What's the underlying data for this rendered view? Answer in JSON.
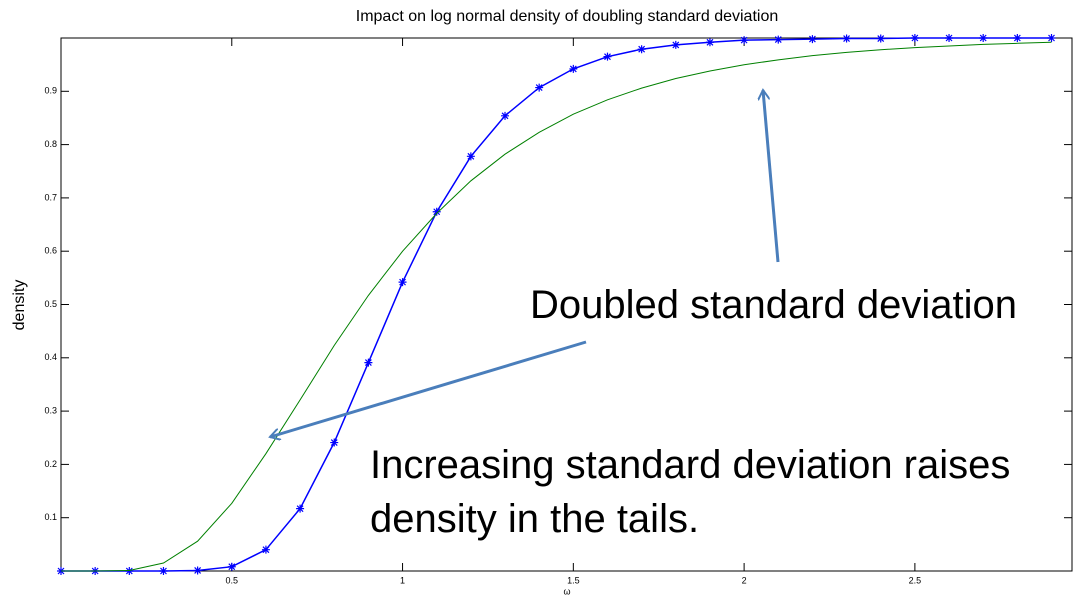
{
  "chart_data": {
    "type": "line",
    "title": "Impact on log normal density of doubling standard deviation",
    "xlabel": "ω",
    "ylabel": "density",
    "x": [
      0,
      0.1,
      0.2,
      0.3,
      0.4,
      0.5,
      0.6,
      0.7,
      0.8,
      0.9,
      1.0,
      1.1,
      1.2,
      1.3,
      1.4,
      1.5,
      1.6,
      1.7,
      1.8,
      1.9,
      2.0,
      2.1,
      2.2,
      2.3,
      2.4,
      2.5,
      2.6,
      2.7,
      2.8,
      2.9
    ],
    "series": [
      {
        "color": "#0000ff",
        "marker": "*",
        "values": [
          0,
          0,
          0,
          0,
          0.001,
          0.008,
          0.04,
          0.117,
          0.241,
          0.391,
          0.542,
          0.674,
          0.778,
          0.854,
          0.907,
          0.942,
          0.965,
          0.979,
          0.987,
          0.992,
          0.996,
          0.997,
          0.998,
          0.999,
          0.999,
          1,
          1,
          1,
          1,
          1
        ]
      },
      {
        "color": "#008000",
        "values": [
          0,
          0,
          0.001,
          0.015,
          0.056,
          0.127,
          0.22,
          0.321,
          0.423,
          0.517,
          0.6,
          0.671,
          0.732,
          0.782,
          0.823,
          0.857,
          0.884,
          0.906,
          0.924,
          0.938,
          0.95,
          0.959,
          0.967,
          0.973,
          0.978,
          0.982,
          0.985,
          0.988,
          0.99,
          0.992
        ]
      }
    ],
    "xlim": [
      0,
      2.96
    ],
    "ylim": [
      0,
      1
    ],
    "xticks": [
      0.5,
      1,
      1.5,
      2,
      2.5
    ],
    "yticks": [
      0.1,
      0.2,
      0.3,
      0.4,
      0.5,
      0.6,
      0.7,
      0.8,
      0.9
    ],
    "annotations": [
      "Doubled standard deviation",
      "Increasing standard deviation raises",
      "density in the tails."
    ]
  }
}
